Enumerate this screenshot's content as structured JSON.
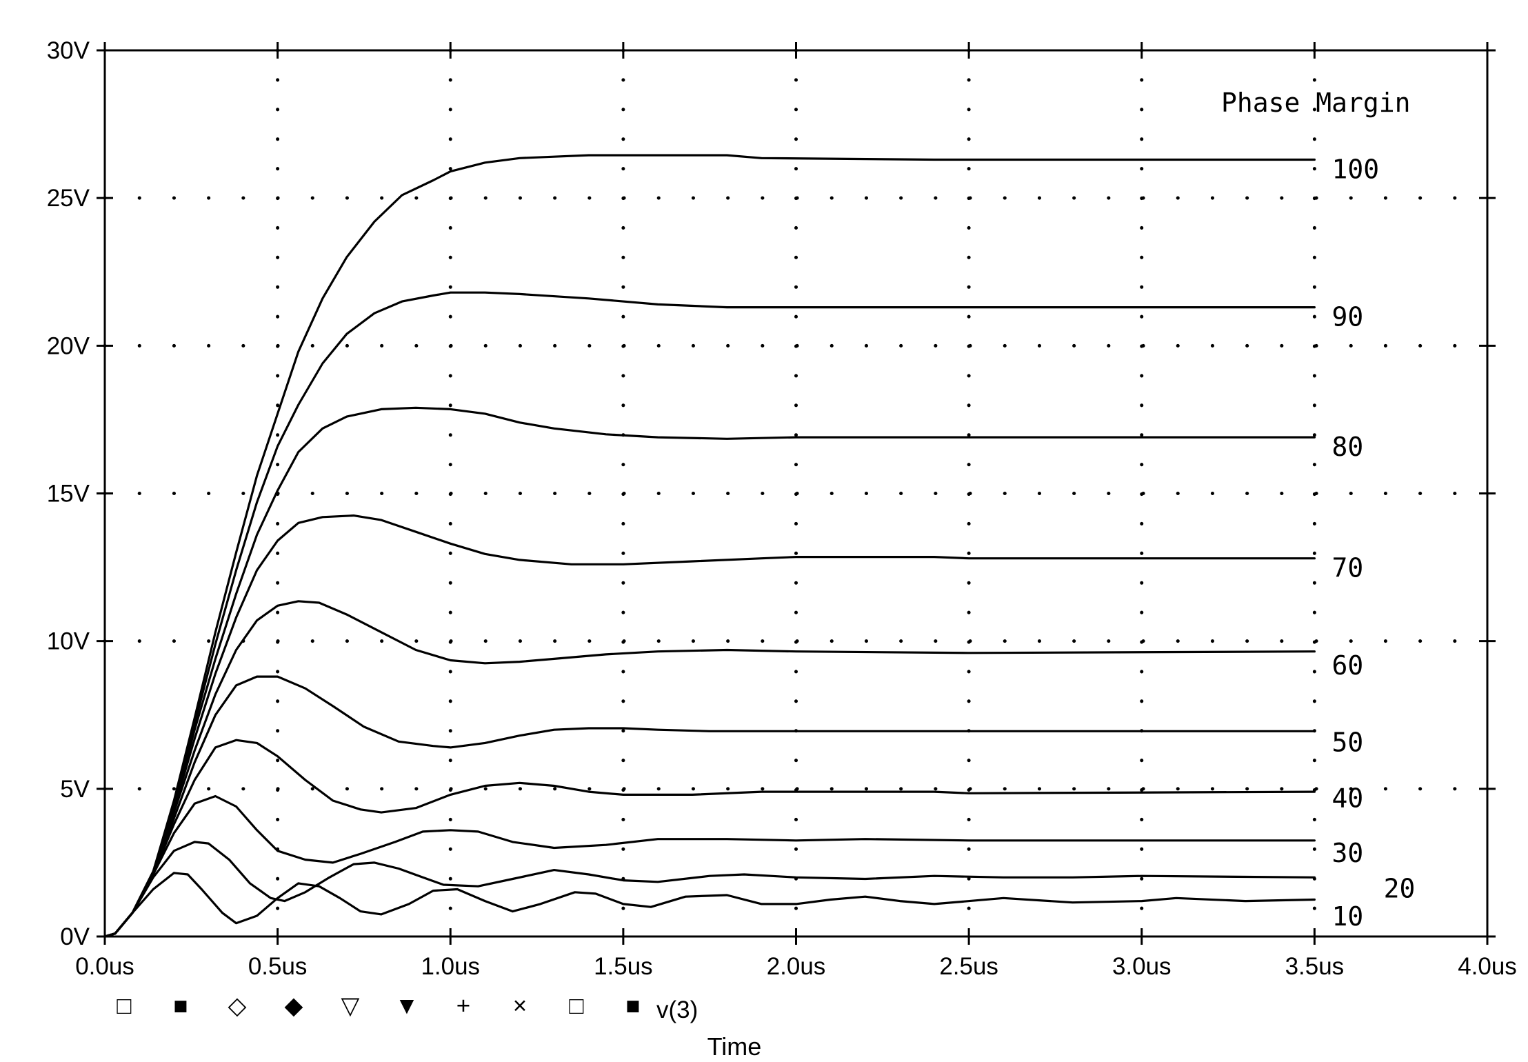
{
  "chart_data": {
    "type": "line",
    "title": "",
    "xlabel": "Time",
    "ylabel": "",
    "xlim": [
      0,
      4.0
    ],
    "ylim": [
      0,
      30
    ],
    "grid": true,
    "x_ticks": [
      0,
      0.5,
      1.0,
      1.5,
      2.0,
      2.5,
      3.0,
      3.5,
      4.0
    ],
    "x_tick_labels": [
      "0.0us",
      "0.5us",
      "1.0us",
      "1.5us",
      "2.0us",
      "2.5us",
      "3.0us",
      "3.5us",
      "4.0us"
    ],
    "y_ticks": [
      0,
      5,
      10,
      15,
      20,
      25,
      30
    ],
    "y_tick_labels": [
      "0V",
      "5V",
      "10V",
      "15V",
      "20V",
      "25V",
      "30V"
    ],
    "legend_title": "Phase Margin",
    "legend_trace": "v(3)",
    "legend_markers": [
      "□",
      "■",
      "◇",
      "◆",
      "▽",
      "▼",
      "+",
      "×",
      "□",
      "■"
    ],
    "series": [
      {
        "name": "100",
        "label_x": 3.55,
        "label_y": 26.0,
        "points": [
          [
            0,
            0
          ],
          [
            0.03,
            0.1
          ],
          [
            0.08,
            0.8
          ],
          [
            0.14,
            2.2
          ],
          [
            0.2,
            4.6
          ],
          [
            0.26,
            7.4
          ],
          [
            0.32,
            10.3
          ],
          [
            0.38,
            13.0
          ],
          [
            0.44,
            15.6
          ],
          [
            0.5,
            17.7
          ],
          [
            0.56,
            19.8
          ],
          [
            0.63,
            21.6
          ],
          [
            0.7,
            23.0
          ],
          [
            0.78,
            24.2
          ],
          [
            0.86,
            25.1
          ],
          [
            0.95,
            25.6
          ],
          [
            1.0,
            25.9
          ],
          [
            1.1,
            26.2
          ],
          [
            1.2,
            26.35
          ],
          [
            1.3,
            26.4
          ],
          [
            1.4,
            26.45
          ],
          [
            1.5,
            26.45
          ],
          [
            1.8,
            26.45
          ],
          [
            1.9,
            26.35
          ],
          [
            2.4,
            26.3
          ],
          [
            3.5,
            26.3
          ]
        ]
      },
      {
        "name": "90",
        "label_x": 3.55,
        "label_y": 21.0,
        "points": [
          [
            0,
            0
          ],
          [
            0.03,
            0.1
          ],
          [
            0.08,
            0.8
          ],
          [
            0.14,
            2.2
          ],
          [
            0.2,
            4.5
          ],
          [
            0.26,
            7.2
          ],
          [
            0.32,
            9.9
          ],
          [
            0.38,
            12.4
          ],
          [
            0.44,
            14.7
          ],
          [
            0.5,
            16.6
          ],
          [
            0.56,
            18.0
          ],
          [
            0.63,
            19.4
          ],
          [
            0.7,
            20.4
          ],
          [
            0.78,
            21.1
          ],
          [
            0.86,
            21.5
          ],
          [
            0.95,
            21.7
          ],
          [
            1.0,
            21.8
          ],
          [
            1.1,
            21.8
          ],
          [
            1.2,
            21.75
          ],
          [
            1.4,
            21.6
          ],
          [
            1.6,
            21.4
          ],
          [
            1.8,
            21.3
          ],
          [
            2.0,
            21.3
          ],
          [
            3.5,
            21.3
          ]
        ]
      },
      {
        "name": "80",
        "label_x": 3.55,
        "label_y": 16.6,
        "points": [
          [
            0,
            0
          ],
          [
            0.03,
            0.1
          ],
          [
            0.08,
            0.8
          ],
          [
            0.14,
            2.2
          ],
          [
            0.2,
            4.4
          ],
          [
            0.26,
            7.0
          ],
          [
            0.32,
            9.4
          ],
          [
            0.38,
            11.6
          ],
          [
            0.44,
            13.6
          ],
          [
            0.5,
            15.1
          ],
          [
            0.56,
            16.4
          ],
          [
            0.63,
            17.2
          ],
          [
            0.7,
            17.6
          ],
          [
            0.8,
            17.85
          ],
          [
            0.9,
            17.9
          ],
          [
            1.0,
            17.85
          ],
          [
            1.1,
            17.7
          ],
          [
            1.2,
            17.4
          ],
          [
            1.3,
            17.2
          ],
          [
            1.45,
            17.0
          ],
          [
            1.6,
            16.9
          ],
          [
            1.8,
            16.85
          ],
          [
            2.0,
            16.9
          ],
          [
            3.5,
            16.9
          ]
        ]
      },
      {
        "name": "70",
        "label_x": 3.55,
        "label_y": 12.5,
        "points": [
          [
            0,
            0
          ],
          [
            0.03,
            0.1
          ],
          [
            0.08,
            0.8
          ],
          [
            0.14,
            2.2
          ],
          [
            0.2,
            4.3
          ],
          [
            0.26,
            6.7
          ],
          [
            0.32,
            8.9
          ],
          [
            0.38,
            10.8
          ],
          [
            0.44,
            12.4
          ],
          [
            0.5,
            13.4
          ],
          [
            0.56,
            14.0
          ],
          [
            0.63,
            14.2
          ],
          [
            0.72,
            14.25
          ],
          [
            0.8,
            14.1
          ],
          [
            0.9,
            13.7
          ],
          [
            1.0,
            13.3
          ],
          [
            1.1,
            12.95
          ],
          [
            1.2,
            12.75
          ],
          [
            1.35,
            12.6
          ],
          [
            1.5,
            12.6
          ],
          [
            1.7,
            12.7
          ],
          [
            1.9,
            12.8
          ],
          [
            2.0,
            12.85
          ],
          [
            2.4,
            12.85
          ],
          [
            2.5,
            12.8
          ],
          [
            3.5,
            12.8
          ]
        ]
      },
      {
        "name": "60",
        "label_x": 3.55,
        "label_y": 9.2,
        "points": [
          [
            0,
            0
          ],
          [
            0.03,
            0.1
          ],
          [
            0.08,
            0.8
          ],
          [
            0.14,
            2.2
          ],
          [
            0.2,
            4.2
          ],
          [
            0.26,
            6.3
          ],
          [
            0.32,
            8.2
          ],
          [
            0.38,
            9.7
          ],
          [
            0.44,
            10.7
          ],
          [
            0.5,
            11.2
          ],
          [
            0.56,
            11.35
          ],
          [
            0.62,
            11.3
          ],
          [
            0.7,
            10.9
          ],
          [
            0.8,
            10.3
          ],
          [
            0.9,
            9.7
          ],
          [
            1.0,
            9.35
          ],
          [
            1.1,
            9.25
          ],
          [
            1.2,
            9.3
          ],
          [
            1.3,
            9.4
          ],
          [
            1.45,
            9.55
          ],
          [
            1.6,
            9.65
          ],
          [
            1.8,
            9.7
          ],
          [
            2.0,
            9.65
          ],
          [
            2.5,
            9.6
          ],
          [
            3.5,
            9.65
          ]
        ]
      },
      {
        "name": "50",
        "label_x": 3.55,
        "label_y": 6.6,
        "points": [
          [
            0,
            0
          ],
          [
            0.03,
            0.1
          ],
          [
            0.08,
            0.8
          ],
          [
            0.14,
            2.1
          ],
          [
            0.2,
            4.0
          ],
          [
            0.26,
            5.9
          ],
          [
            0.32,
            7.5
          ],
          [
            0.38,
            8.5
          ],
          [
            0.44,
            8.8
          ],
          [
            0.5,
            8.8
          ],
          [
            0.58,
            8.4
          ],
          [
            0.66,
            7.8
          ],
          [
            0.75,
            7.1
          ],
          [
            0.85,
            6.6
          ],
          [
            0.95,
            6.45
          ],
          [
            1.0,
            6.4
          ],
          [
            1.1,
            6.55
          ],
          [
            1.2,
            6.8
          ],
          [
            1.3,
            7.0
          ],
          [
            1.4,
            7.05
          ],
          [
            1.5,
            7.05
          ],
          [
            1.6,
            7.0
          ],
          [
            1.75,
            6.95
          ],
          [
            2.0,
            6.95
          ],
          [
            3.5,
            6.95
          ]
        ]
      },
      {
        "name": "40",
        "label_x": 3.55,
        "label_y": 4.7,
        "points": [
          [
            0,
            0
          ],
          [
            0.03,
            0.1
          ],
          [
            0.08,
            0.8
          ],
          [
            0.14,
            2.1
          ],
          [
            0.2,
            3.8
          ],
          [
            0.26,
            5.3
          ],
          [
            0.32,
            6.4
          ],
          [
            0.38,
            6.65
          ],
          [
            0.44,
            6.55
          ],
          [
            0.5,
            6.1
          ],
          [
            0.58,
            5.3
          ],
          [
            0.66,
            4.6
          ],
          [
            0.74,
            4.3
          ],
          [
            0.8,
            4.2
          ],
          [
            0.9,
            4.35
          ],
          [
            1.0,
            4.8
          ],
          [
            1.1,
            5.1
          ],
          [
            1.2,
            5.2
          ],
          [
            1.3,
            5.1
          ],
          [
            1.4,
            4.9
          ],
          [
            1.5,
            4.8
          ],
          [
            1.7,
            4.8
          ],
          [
            1.9,
            4.9
          ],
          [
            2.4,
            4.9
          ],
          [
            2.5,
            4.85
          ],
          [
            3.5,
            4.9
          ]
        ]
      },
      {
        "name": "30",
        "label_x": 3.55,
        "label_y": 2.85,
        "points": [
          [
            0,
            0
          ],
          [
            0.03,
            0.1
          ],
          [
            0.08,
            0.8
          ],
          [
            0.14,
            2.1
          ],
          [
            0.2,
            3.5
          ],
          [
            0.26,
            4.5
          ],
          [
            0.32,
            4.75
          ],
          [
            0.38,
            4.4
          ],
          [
            0.44,
            3.6
          ],
          [
            0.5,
            2.9
          ],
          [
            0.58,
            2.6
          ],
          [
            0.66,
            2.5
          ],
          [
            0.74,
            2.8
          ],
          [
            0.84,
            3.2
          ],
          [
            0.92,
            3.55
          ],
          [
            1.0,
            3.6
          ],
          [
            1.08,
            3.55
          ],
          [
            1.18,
            3.2
          ],
          [
            1.3,
            3.0
          ],
          [
            1.45,
            3.1
          ],
          [
            1.6,
            3.3
          ],
          [
            1.8,
            3.3
          ],
          [
            2.0,
            3.25
          ],
          [
            2.2,
            3.3
          ],
          [
            2.5,
            3.25
          ],
          [
            3.5,
            3.25
          ]
        ]
      },
      {
        "name": "20",
        "label_x": 3.7,
        "label_y": 1.65,
        "points": [
          [
            0,
            0
          ],
          [
            0.03,
            0.1
          ],
          [
            0.08,
            0.8
          ],
          [
            0.14,
            2.0
          ],
          [
            0.2,
            2.9
          ],
          [
            0.26,
            3.2
          ],
          [
            0.3,
            3.15
          ],
          [
            0.36,
            2.6
          ],
          [
            0.42,
            1.8
          ],
          [
            0.48,
            1.3
          ],
          [
            0.52,
            1.2
          ],
          [
            0.58,
            1.5
          ],
          [
            0.65,
            2.0
          ],
          [
            0.72,
            2.45
          ],
          [
            0.78,
            2.5
          ],
          [
            0.85,
            2.3
          ],
          [
            0.92,
            2.0
          ],
          [
            0.98,
            1.75
          ],
          [
            1.08,
            1.7
          ],
          [
            1.18,
            1.95
          ],
          [
            1.3,
            2.25
          ],
          [
            1.4,
            2.1
          ],
          [
            1.5,
            1.9
          ],
          [
            1.6,
            1.85
          ],
          [
            1.75,
            2.05
          ],
          [
            1.85,
            2.1
          ],
          [
            2.0,
            2.0
          ],
          [
            2.2,
            1.95
          ],
          [
            2.4,
            2.05
          ],
          [
            2.6,
            2.0
          ],
          [
            2.8,
            2.0
          ],
          [
            3.0,
            2.05
          ],
          [
            3.5,
            2.0
          ]
        ]
      },
      {
        "name": "10",
        "label_x": 3.55,
        "label_y": 0.7,
        "points": [
          [
            0,
            0
          ],
          [
            0.03,
            0.1
          ],
          [
            0.08,
            0.8
          ],
          [
            0.14,
            1.6
          ],
          [
            0.2,
            2.15
          ],
          [
            0.24,
            2.1
          ],
          [
            0.28,
            1.6
          ],
          [
            0.34,
            0.8
          ],
          [
            0.38,
            0.45
          ],
          [
            0.44,
            0.7
          ],
          [
            0.5,
            1.3
          ],
          [
            0.56,
            1.8
          ],
          [
            0.62,
            1.7
          ],
          [
            0.68,
            1.3
          ],
          [
            0.74,
            0.85
          ],
          [
            0.8,
            0.75
          ],
          [
            0.88,
            1.1
          ],
          [
            0.95,
            1.55
          ],
          [
            1.02,
            1.6
          ],
          [
            1.1,
            1.2
          ],
          [
            1.18,
            0.85
          ],
          [
            1.26,
            1.1
          ],
          [
            1.36,
            1.5
          ],
          [
            1.42,
            1.45
          ],
          [
            1.5,
            1.1
          ],
          [
            1.58,
            1.0
          ],
          [
            1.68,
            1.35
          ],
          [
            1.8,
            1.4
          ],
          [
            1.9,
            1.1
          ],
          [
            2.0,
            1.1
          ],
          [
            2.1,
            1.25
          ],
          [
            2.2,
            1.35
          ],
          [
            2.3,
            1.2
          ],
          [
            2.4,
            1.1
          ],
          [
            2.6,
            1.3
          ],
          [
            2.8,
            1.15
          ],
          [
            3.0,
            1.2
          ],
          [
            3.1,
            1.3
          ],
          [
            3.3,
            1.2
          ],
          [
            3.5,
            1.25
          ]
        ]
      }
    ]
  }
}
